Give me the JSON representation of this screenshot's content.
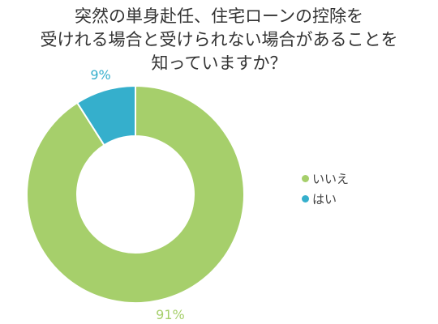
{
  "chart_data": {
    "type": "pie",
    "title_lines": [
      "突然の単身赴任、住宅ローンの控除を",
      "受けれる場合と受けられない場合があることを",
      "知っていますか？"
    ],
    "slices": [
      {
        "label": "いいえ",
        "value": 91,
        "value_label": "91%",
        "color": "#a6cf6b"
      },
      {
        "label": "はい",
        "value": 9,
        "value_label": "9%",
        "color": "#35afcc"
      }
    ],
    "donut": true,
    "legend": "right"
  }
}
